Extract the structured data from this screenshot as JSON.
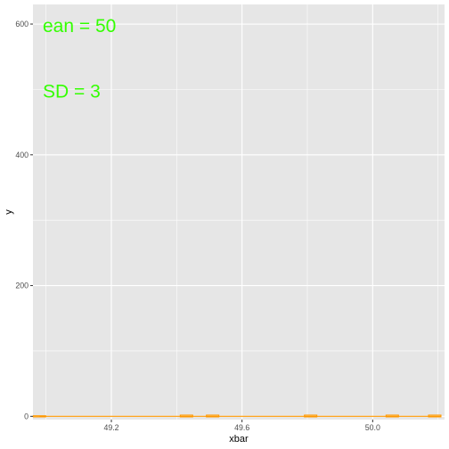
{
  "chart_data": {
    "type": "histogram",
    "xlabel": "xbar",
    "ylabel": "y",
    "xlim": [
      48.96,
      50.22
    ],
    "ylim": [
      -5,
      630
    ],
    "x_ticks": [
      {
        "value": 49.2,
        "label": "49.2"
      },
      {
        "value": 49.6,
        "label": "49.6"
      },
      {
        "value": 50.0,
        "label": "50.0"
      }
    ],
    "y_ticks": [
      {
        "value": 0,
        "label": "0"
      },
      {
        "value": 200,
        "label": "200"
      },
      {
        "value": 400,
        "label": "400"
      },
      {
        "value": 600,
        "label": "600"
      }
    ],
    "grid": true,
    "bins": [
      {
        "x": 48.98,
        "count": 0
      },
      {
        "x": 49.43,
        "count": 1
      },
      {
        "x": 49.51,
        "count": 1
      },
      {
        "x": 49.81,
        "count": 1
      },
      {
        "x": 50.06,
        "count": 1
      },
      {
        "x": 50.19,
        "count": 1
      }
    ],
    "curve": {
      "x_start": 48.98,
      "x_end": 50.21,
      "value": 0,
      "color": "#ff9900"
    },
    "bar_outline_color": "#ff9900",
    "annotations": [
      {
        "text": "ean = 50",
        "x": 48.99,
        "y": 597,
        "color": "#33ff00"
      },
      {
        "text": "SD = 3",
        "x": 48.99,
        "y": 497,
        "color": "#33ff00"
      }
    ],
    "panel_color": "#e6e6e6",
    "grid_color": "#ffffff"
  }
}
